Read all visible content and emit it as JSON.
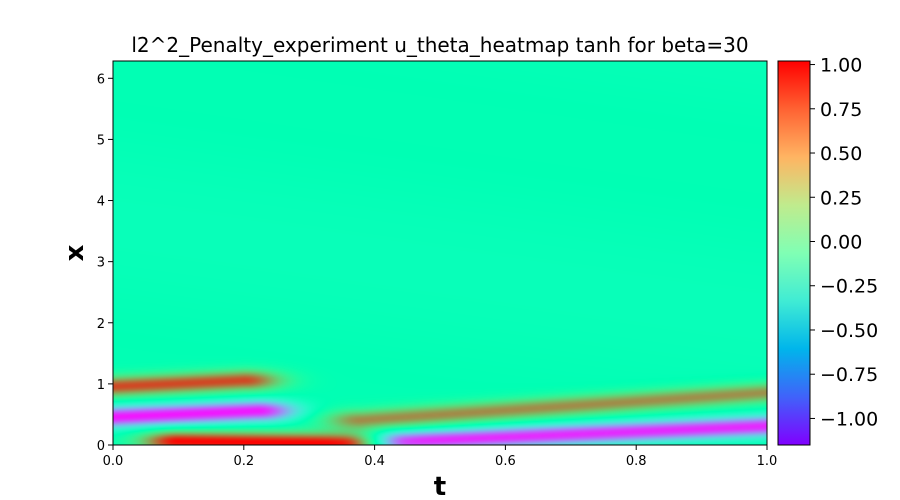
{
  "chart_data": {
    "type": "heatmap",
    "title": "l2^2_Penalty_experiment u_theta_heatmap tanh for beta=30",
    "xlabel": "t",
    "ylabel": "x",
    "xlim": [
      0.0,
      1.0
    ],
    "ylim": [
      0.0,
      6.283
    ],
    "x_ticks": [
      "0.0",
      "0.2",
      "0.4",
      "0.6",
      "0.8",
      "1.0"
    ],
    "y_ticks": [
      "0",
      "1",
      "2",
      "3",
      "4",
      "5",
      "6"
    ],
    "colormap": "rainbow",
    "color_range": [
      -1.15,
      1.02
    ],
    "colorbar_ticks": [
      "1.00",
      "0.75",
      "0.50",
      "0.25",
      "0.00",
      "−0.25",
      "−0.50",
      "−0.75",
      "−1.00"
    ],
    "background_value": -0.08,
    "features": [
      {
        "kind": "band",
        "t0": 0.0,
        "x0": 0.95,
        "t1": 0.2,
        "x1": 1.05,
        "value": 0.8
      },
      {
        "kind": "band",
        "t0": 0.0,
        "x0": 0.45,
        "t1": 0.22,
        "x1": 0.55,
        "value": -1.1
      },
      {
        "kind": "band",
        "t0": 0.1,
        "x0": 0.05,
        "t1": 0.35,
        "x1": 0.02,
        "value": 1.0
      },
      {
        "kind": "band",
        "t0": 0.38,
        "x0": 0.4,
        "t1": 1.0,
        "x1": 0.85,
        "value": 0.6
      },
      {
        "kind": "band",
        "t0": 0.45,
        "x0": 0.05,
        "t1": 1.0,
        "x1": 0.3,
        "value": -1.05
      }
    ]
  }
}
